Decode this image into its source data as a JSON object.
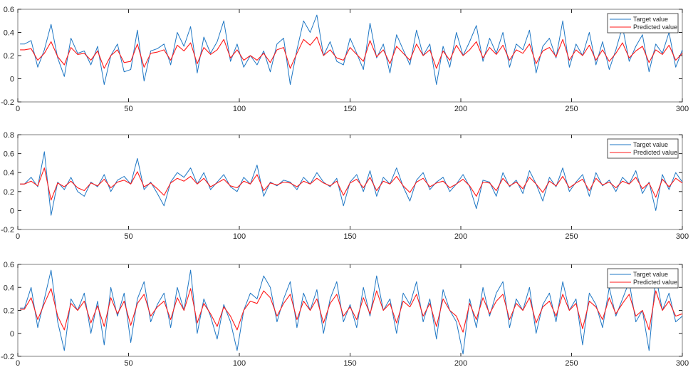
{
  "colors": {
    "target": "#1f77c4",
    "predicted": "#ff1a1a",
    "axis": "#262626"
  },
  "chart_data": [
    {
      "type": "line",
      "title": "",
      "xlim": [
        0,
        300
      ],
      "ylim": [
        -0.2,
        0.6
      ],
      "xticks": [
        0,
        50,
        100,
        150,
        200,
        250,
        300
      ],
      "yticks": [
        -0.2,
        0,
        0.2,
        0.4,
        0.6
      ],
      "ytick_labels": [
        "-0.2",
        "0",
        "0.2",
        "0.4",
        "0.6"
      ],
      "legend_position": "top-right",
      "x_start": 3,
      "x_step": 3,
      "series": [
        {
          "name": "Target value",
          "color_key": "target",
          "values": [
            0.3,
            0.33,
            0.1,
            0.25,
            0.47,
            0.18,
            0.02,
            0.35,
            0.22,
            0.24,
            0.12,
            0.28,
            -0.05,
            0.2,
            0.3,
            0.06,
            0.08,
            0.42,
            -0.02,
            0.24,
            0.26,
            0.3,
            0.12,
            0.4,
            0.28,
            0.45,
            0.05,
            0.36,
            0.22,
            0.32,
            0.5,
            0.15,
            0.3,
            0.1,
            0.2,
            0.12,
            0.24,
            0.06,
            0.3,
            0.35,
            -0.05,
            0.25,
            0.5,
            0.4,
            0.55,
            0.2,
            0.32,
            0.15,
            0.12,
            0.35,
            0.22,
            0.08,
            0.48,
            0.18,
            0.3,
            0.05,
            0.38,
            0.25,
            0.12,
            0.42,
            0.2,
            0.3,
            -0.05,
            0.28,
            0.1,
            0.4,
            0.2,
            0.32,
            0.46,
            0.15,
            0.35,
            0.22,
            0.4,
            0.1,
            0.3,
            0.25,
            0.42,
            0.05,
            0.28,
            0.35,
            0.18,
            0.5,
            0.1,
            0.3,
            0.2,
            0.4,
            0.12,
            0.32,
            0.08,
            0.25,
            0.45,
            0.15,
            0.28,
            0.38,
            0.06,
            0.3,
            0.22,
            0.4,
            0.1,
            0.25
          ]
        },
        {
          "name": "Predicted value",
          "color_key": "predicted",
          "values": [
            0.25,
            0.26,
            0.16,
            0.22,
            0.32,
            0.19,
            0.12,
            0.27,
            0.21,
            0.22,
            0.16,
            0.24,
            0.09,
            0.2,
            0.25,
            0.14,
            0.15,
            0.3,
            0.1,
            0.22,
            0.23,
            0.25,
            0.16,
            0.29,
            0.24,
            0.31,
            0.13,
            0.27,
            0.21,
            0.25,
            0.34,
            0.18,
            0.25,
            0.16,
            0.2,
            0.16,
            0.22,
            0.14,
            0.25,
            0.27,
            0.09,
            0.22,
            0.34,
            0.29,
            0.36,
            0.2,
            0.25,
            0.18,
            0.16,
            0.27,
            0.21,
            0.15,
            0.33,
            0.19,
            0.25,
            0.13,
            0.28,
            0.22,
            0.16,
            0.3,
            0.2,
            0.25,
            0.09,
            0.24,
            0.16,
            0.29,
            0.2,
            0.25,
            0.32,
            0.18,
            0.27,
            0.21,
            0.29,
            0.16,
            0.25,
            0.22,
            0.3,
            0.13,
            0.24,
            0.27,
            0.19,
            0.34,
            0.16,
            0.25,
            0.2,
            0.29,
            0.16,
            0.25,
            0.15,
            0.22,
            0.31,
            0.18,
            0.24,
            0.28,
            0.14,
            0.25,
            0.21,
            0.29,
            0.16,
            0.22
          ]
        }
      ]
    },
    {
      "type": "line",
      "title": "",
      "xlim": [
        0,
        300
      ],
      "ylim": [
        -0.2,
        0.8
      ],
      "xticks": [
        0,
        50,
        100,
        150,
        200,
        250,
        300
      ],
      "yticks": [
        -0.2,
        0,
        0.2,
        0.4,
        0.6,
        0.8
      ],
      "ytick_labels": [
        "-0.2",
        "0",
        "0.2",
        "0.4",
        "0.6",
        "0.8"
      ],
      "legend_position": "top-right",
      "x_start": 3,
      "x_step": 3,
      "series": [
        {
          "name": "Target value",
          "color_key": "target",
          "values": [
            0.28,
            0.35,
            0.25,
            0.62,
            -0.05,
            0.3,
            0.22,
            0.35,
            0.2,
            0.15,
            0.3,
            0.25,
            0.38,
            0.2,
            0.32,
            0.36,
            0.28,
            0.55,
            0.22,
            0.3,
            0.18,
            0.05,
            0.3,
            0.4,
            0.35,
            0.45,
            0.28,
            0.4,
            0.22,
            0.3,
            0.38,
            0.25,
            0.2,
            0.35,
            0.28,
            0.48,
            0.15,
            0.3,
            0.26,
            0.32,
            0.3,
            0.22,
            0.35,
            0.28,
            0.4,
            0.3,
            0.25,
            0.34,
            0.05,
            0.3,
            0.38,
            0.2,
            0.42,
            0.15,
            0.35,
            0.28,
            0.45,
            0.25,
            0.1,
            0.32,
            0.4,
            0.22,
            0.3,
            0.35,
            0.2,
            0.28,
            0.38,
            0.25,
            0.02,
            0.32,
            0.3,
            0.15,
            0.4,
            0.25,
            0.32,
            0.18,
            0.42,
            0.28,
            0.1,
            0.35,
            0.25,
            0.45,
            0.2,
            0.3,
            0.38,
            0.15,
            0.4,
            0.26,
            0.32,
            0.2,
            0.35,
            0.28,
            0.42,
            0.18,
            0.3,
            0.0,
            0.38,
            0.22,
            0.4,
            0.3
          ]
        },
        {
          "name": "Predicted value",
          "color_key": "predicted",
          "values": [
            0.28,
            0.31,
            0.26,
            0.45,
            0.11,
            0.29,
            0.25,
            0.31,
            0.24,
            0.21,
            0.29,
            0.26,
            0.33,
            0.24,
            0.3,
            0.32,
            0.28,
            0.41,
            0.25,
            0.29,
            0.23,
            0.16,
            0.29,
            0.34,
            0.31,
            0.36,
            0.28,
            0.34,
            0.25,
            0.29,
            0.33,
            0.26,
            0.24,
            0.31,
            0.28,
            0.38,
            0.21,
            0.29,
            0.27,
            0.3,
            0.29,
            0.25,
            0.31,
            0.28,
            0.34,
            0.29,
            0.26,
            0.31,
            0.16,
            0.29,
            0.33,
            0.24,
            0.35,
            0.21,
            0.31,
            0.28,
            0.36,
            0.26,
            0.19,
            0.3,
            0.34,
            0.25,
            0.29,
            0.31,
            0.24,
            0.28,
            0.33,
            0.26,
            0.15,
            0.3,
            0.29,
            0.21,
            0.34,
            0.26,
            0.3,
            0.23,
            0.35,
            0.28,
            0.19,
            0.31,
            0.26,
            0.36,
            0.24,
            0.29,
            0.33,
            0.21,
            0.34,
            0.27,
            0.3,
            0.24,
            0.31,
            0.28,
            0.35,
            0.23,
            0.29,
            0.14,
            0.33,
            0.25,
            0.34,
            0.29
          ]
        }
      ]
    },
    {
      "type": "line",
      "title": "",
      "xlim": [
        0,
        300
      ],
      "ylim": [
        -0.2,
        0.6
      ],
      "xticks": [
        0,
        50,
        100,
        150,
        200,
        250,
        300
      ],
      "yticks": [
        -0.2,
        0,
        0.2,
        0.4,
        0.6
      ],
      "ytick_labels": [
        "-0.2",
        "0",
        "0.2",
        "0.4",
        "0.6"
      ],
      "legend_position": "top-right",
      "x_start": 3,
      "x_step": 3,
      "series": [
        {
          "name": "Target value",
          "color_key": "target",
          "values": [
            0.22,
            0.4,
            0.05,
            0.3,
            0.55,
            0.1,
            -0.15,
            0.3,
            0.2,
            0.35,
            0.0,
            0.28,
            -0.1,
            0.4,
            0.15,
            0.35,
            -0.08,
            0.3,
            0.45,
            0.1,
            0.25,
            0.35,
            0.05,
            0.4,
            0.2,
            0.55,
            0.0,
            0.3,
            0.15,
            -0.05,
            0.25,
            0.1,
            -0.15,
            0.2,
            0.35,
            0.3,
            0.5,
            0.4,
            0.1,
            0.3,
            0.45,
            0.05,
            0.35,
            0.2,
            0.38,
            0.0,
            0.3,
            0.45,
            0.1,
            0.25,
            0.05,
            0.4,
            0.15,
            0.5,
            0.2,
            0.3,
            0.0,
            0.35,
            0.25,
            0.45,
            0.1,
            0.3,
            -0.05,
            0.38,
            0.2,
            0.1,
            -0.18,
            0.3,
            0.05,
            0.4,
            0.15,
            0.35,
            0.45,
            0.05,
            0.3,
            0.2,
            0.4,
            0.0,
            0.25,
            0.35,
            0.1,
            0.45,
            0.2,
            0.3,
            -0.1,
            0.35,
            0.25,
            0.05,
            0.4,
            0.15,
            0.3,
            0.45,
            0.1,
            0.2,
            -0.15,
            0.5,
            0.2,
            0.35,
            0.1,
            0.15
          ]
        },
        {
          "name": "Predicted value",
          "color_key": "predicted",
          "values": [
            0.21,
            0.31,
            0.12,
            0.26,
            0.39,
            0.15,
            0.03,
            0.26,
            0.2,
            0.28,
            0.09,
            0.24,
            0.06,
            0.31,
            0.17,
            0.28,
            0.07,
            0.26,
            0.34,
            0.15,
            0.23,
            0.28,
            0.12,
            0.31,
            0.2,
            0.39,
            0.09,
            0.26,
            0.17,
            0.06,
            0.23,
            0.15,
            0.03,
            0.2,
            0.28,
            0.26,
            0.37,
            0.31,
            0.15,
            0.26,
            0.34,
            0.12,
            0.28,
            0.2,
            0.3,
            0.09,
            0.26,
            0.34,
            0.15,
            0.23,
            0.12,
            0.31,
            0.17,
            0.37,
            0.2,
            0.26,
            0.09,
            0.28,
            0.23,
            0.34,
            0.15,
            0.26,
            0.06,
            0.3,
            0.2,
            0.15,
            0.01,
            0.26,
            0.12,
            0.31,
            0.17,
            0.28,
            0.34,
            0.12,
            0.26,
            0.2,
            0.31,
            0.09,
            0.23,
            0.28,
            0.15,
            0.34,
            0.2,
            0.26,
            0.04,
            0.28,
            0.23,
            0.12,
            0.31,
            0.17,
            0.26,
            0.34,
            0.15,
            0.2,
            0.03,
            0.37,
            0.2,
            0.28,
            0.15,
            0.17
          ]
        }
      ]
    }
  ]
}
